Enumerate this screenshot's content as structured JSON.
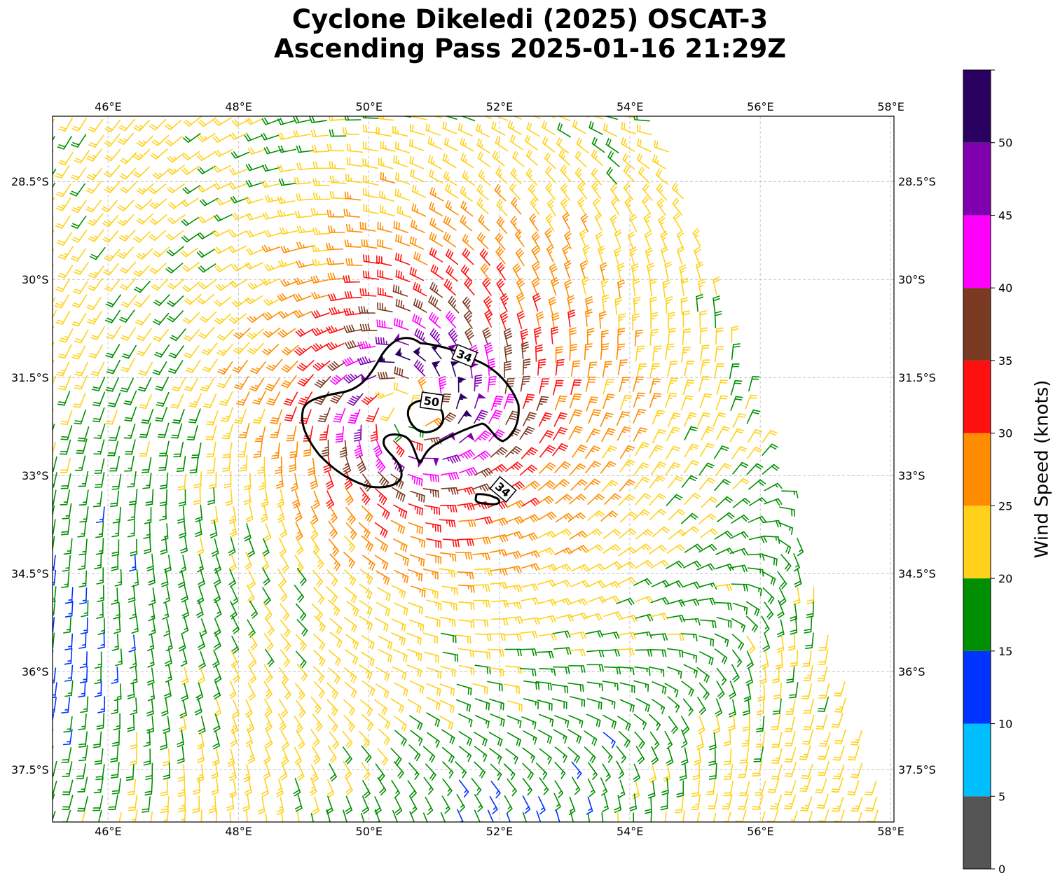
{
  "title": {
    "line1": "Cyclone Dikeledi (2025) OSCAT-3",
    "line2": "Ascending Pass 2025-01-16 21:29Z"
  },
  "map": {
    "lon_range": [
      45.15,
      58.05
    ],
    "lat_range": [
      -38.3,
      -27.5
    ],
    "lon_ticks": [
      {
        "value": 46,
        "label": "46°E"
      },
      {
        "value": 48,
        "label": "48°E"
      },
      {
        "value": 50,
        "label": "50°E"
      },
      {
        "value": 52,
        "label": "52°E"
      },
      {
        "value": 54,
        "label": "54°E"
      },
      {
        "value": 56,
        "label": "56°E"
      },
      {
        "value": 58,
        "label": "58°E"
      }
    ],
    "lat_ticks": [
      {
        "value": -28.5,
        "label": "28.5°S"
      },
      {
        "value": -30,
        "label": "30°S"
      },
      {
        "value": -31.5,
        "label": "31.5°S"
      },
      {
        "value": -33,
        "label": "33°S"
      },
      {
        "value": -34.5,
        "label": "34.5°S"
      },
      {
        "value": -36,
        "label": "36°S"
      },
      {
        "value": -37.5,
        "label": "37.5°S"
      }
    ],
    "grid": "dashed",
    "wind_field": {
      "center": {
        "lon": 50.6,
        "lat": -32.0
      },
      "max_wind_kt": 52,
      "rmw_deg": 0.75,
      "far_field_kt": 18,
      "swath_east_edge": {
        "top_lon": 54.4,
        "bottom_lon": 58.05
      }
    },
    "contours": [
      {
        "level": 34,
        "label": "34",
        "label_lon": 51.45,
        "label_lat": -31.25
      },
      {
        "level": 50,
        "label": "50",
        "label_lon": 50.98,
        "label_lat": -31.88
      },
      {
        "level": 34,
        "label": "34",
        "label_lon": 52.05,
        "label_lat": -33.2
      }
    ]
  },
  "colorbar": {
    "label": "Wind Speed (knots)",
    "ticks": [
      "0",
      "5",
      "10",
      "15",
      "20",
      "25",
      "30",
      "35",
      "40",
      "45",
      "50"
    ],
    "bins": [
      {
        "min": 0,
        "max": 5,
        "color": "#555555"
      },
      {
        "min": 5,
        "max": 10,
        "color": "#00bfff"
      },
      {
        "min": 10,
        "max": 15,
        "color": "#0033ff"
      },
      {
        "min": 15,
        "max": 20,
        "color": "#008f00"
      },
      {
        "min": 20,
        "max": 25,
        "color": "#ffd11a"
      },
      {
        "min": 25,
        "max": 30,
        "color": "#ff8c00"
      },
      {
        "min": 30,
        "max": 35,
        "color": "#ff1010"
      },
      {
        "min": 35,
        "max": 40,
        "color": "#7b3a22"
      },
      {
        "min": 40,
        "max": 45,
        "color": "#ff00ff"
      },
      {
        "min": 45,
        "max": 50,
        "color": "#8000b0"
      },
      {
        "min": 50,
        "max": 55,
        "color": "#2a0060"
      }
    ]
  }
}
